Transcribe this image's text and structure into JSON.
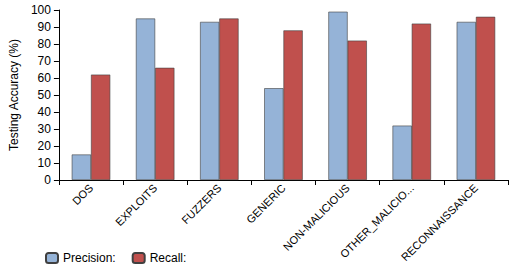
{
  "chart_data": {
    "type": "bar",
    "y_label": "Testing Accuracy (%)",
    "categories": [
      "DOS",
      "EXPLOITS",
      "FUZZERS",
      "GENERIC",
      "NON-MALICIOUS",
      "OTHER_MALICIO...",
      "RECONNAISSANCE"
    ],
    "series": [
      {
        "name": "Precision:",
        "color": "#95b3d7",
        "values": [
          15,
          95,
          93,
          54,
          99,
          32,
          93
        ]
      },
      {
        "name": "Recall:",
        "color": "#c0504d",
        "values": [
          62,
          66,
          95,
          88,
          82,
          92,
          96
        ]
      }
    ],
    "ylim": [
      0,
      100
    ],
    "yticks": [
      0,
      10,
      20,
      30,
      40,
      50,
      60,
      70,
      80,
      90,
      100
    ],
    "grid": false,
    "legend": "bottom-left"
  }
}
